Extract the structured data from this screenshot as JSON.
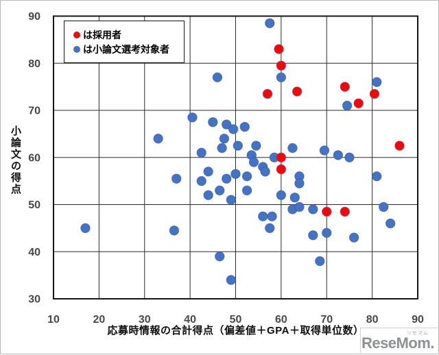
{
  "watermark": {
    "brand": "ReseMom.",
    "kana": "リセマム"
  },
  "colors": {
    "hired": "#ee0a0a",
    "hired_rim": "#a8326e",
    "candidate": "#4472c4",
    "candidate_rim": "#2f5597",
    "grid": "#2a2a2a",
    "plot_border": "#141414",
    "axis_tick_text": "#474747",
    "title_text": "#0d0d0d",
    "watermark_text": "#8d9194"
  },
  "chart_data": {
    "type": "scatter",
    "title": "",
    "xlabel": "応募時情報の合計得点（偏差値＋GPA＋取得単位数）",
    "ylabel": "小論文の得点",
    "xlim": [
      10,
      90
    ],
    "ylim": [
      30,
      90
    ],
    "xticks": [
      10,
      20,
      30,
      40,
      50,
      60,
      70,
      80,
      90
    ],
    "yticks": [
      30,
      40,
      50,
      60,
      70,
      80,
      90
    ],
    "grid": true,
    "legend_position": "top-left-inside",
    "marker_diameter_px": 13.5,
    "series": [
      {
        "name": "は採用者",
        "color": "#ee0a0a",
        "points": [
          [
            59.5,
            83
          ],
          [
            60,
            79.5
          ],
          [
            57,
            73.5
          ],
          [
            63.5,
            74
          ],
          [
            74,
            75
          ],
          [
            80.5,
            73.5
          ],
          [
            77,
            71.5
          ],
          [
            86,
            62.5
          ],
          [
            60,
            60
          ],
          [
            60,
            57.5
          ],
          [
            70,
            48.5
          ],
          [
            74,
            48.5
          ]
        ]
      },
      {
        "name": "は小論文選考対象者",
        "color": "#4472c4",
        "points": [
          [
            57.5,
            88.5
          ],
          [
            60,
            77
          ],
          [
            46,
            77
          ],
          [
            81,
            76
          ],
          [
            74.5,
            71
          ],
          [
            40.5,
            68.5
          ],
          [
            45,
            67.5
          ],
          [
            48,
            67
          ],
          [
            52,
            66.5
          ],
          [
            49.5,
            66
          ],
          [
            47.5,
            64
          ],
          [
            33,
            64
          ],
          [
            54.5,
            62.5
          ],
          [
            50.5,
            62.5
          ],
          [
            47,
            62
          ],
          [
            62.5,
            62
          ],
          [
            42.5,
            61
          ],
          [
            69.5,
            61.5
          ],
          [
            72.5,
            60.5
          ],
          [
            75,
            60
          ],
          [
            53.5,
            60.5
          ],
          [
            58.5,
            60
          ],
          [
            54,
            59
          ],
          [
            56,
            58
          ],
          [
            56.5,
            57
          ],
          [
            44,
            57
          ],
          [
            64,
            56
          ],
          [
            64,
            54.5
          ],
          [
            37,
            55.5
          ],
          [
            42.5,
            55
          ],
          [
            48,
            55.5
          ],
          [
            50,
            56.5
          ],
          [
            52.5,
            56
          ],
          [
            81,
            56
          ],
          [
            52.5,
            53
          ],
          [
            46.5,
            53
          ],
          [
            44,
            52
          ],
          [
            49,
            51
          ],
          [
            60,
            52
          ],
          [
            63,
            51.5
          ],
          [
            62.5,
            49
          ],
          [
            64,
            49.5
          ],
          [
            67,
            49
          ],
          [
            82.5,
            49.5
          ],
          [
            56,
            47.5
          ],
          [
            58,
            47.5
          ],
          [
            57.5,
            45
          ],
          [
            17,
            45
          ],
          [
            36.5,
            44.5
          ],
          [
            67,
            43.5
          ],
          [
            70,
            44
          ],
          [
            76,
            43
          ],
          [
            84,
            46
          ],
          [
            46.5,
            39
          ],
          [
            68.5,
            38
          ],
          [
            49,
            34
          ]
        ]
      }
    ]
  }
}
